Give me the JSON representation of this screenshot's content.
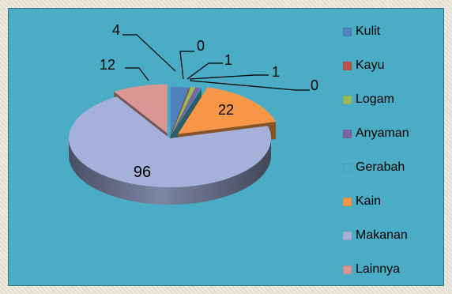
{
  "chart_data": {
    "type": "pie",
    "title": "",
    "categories": [
      "Kulit",
      "Kayu",
      "Logam",
      "Anyaman",
      "Gerabah",
      "Kain",
      "Makanan",
      "Lainnya"
    ],
    "values": [
      4,
      0,
      1,
      1,
      0,
      22,
      96,
      12
    ],
    "data_labels": [
      "4",
      "0",
      "1",
      "1",
      "0",
      "22",
      "96",
      "12"
    ],
    "legend_position": "right",
    "exploded": true,
    "style": "3d",
    "colors": [
      "#4f81bd",
      "#c0504d",
      "#9bbb59",
      "#8064a2",
      "#4bacc6",
      "#f79646",
      "#a5b1da",
      "#d99694"
    ]
  }
}
